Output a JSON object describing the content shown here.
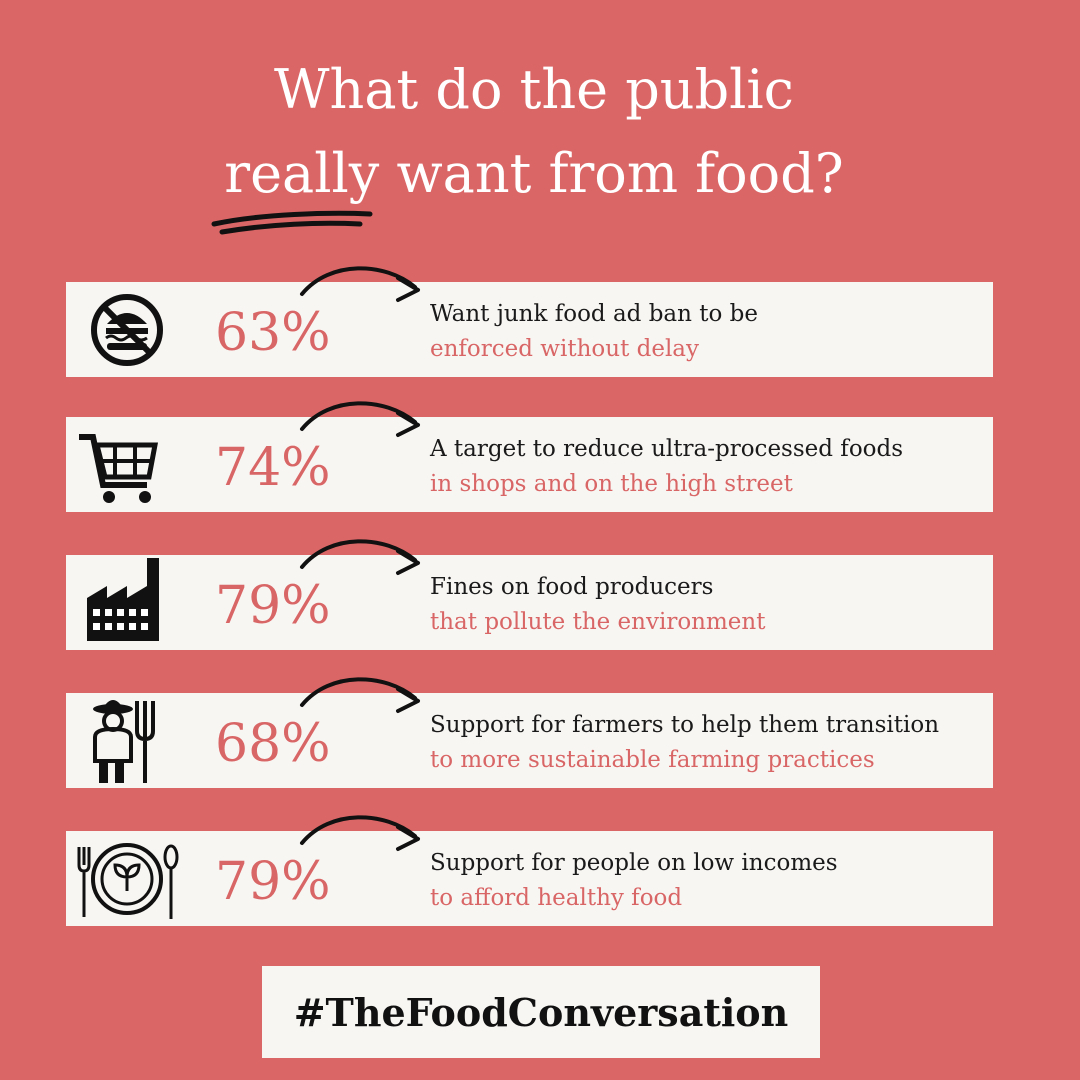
{
  "header": {
    "title_line1": "What do the public",
    "title_line2": "really want from food?"
  },
  "items": [
    {
      "percent": "63%",
      "line1": "Want junk food ad ban to be",
      "line2": "enforced without delay"
    },
    {
      "percent": "74%",
      "line1": "A target to reduce ultra-processed foods",
      "line2": "in shops and on the high street"
    },
    {
      "percent": "79%",
      "line1": "Fines on food producers",
      "line2": "that pollute the environment"
    },
    {
      "percent": "68%",
      "line1": "Support for farmers to help them transition",
      "line2": "to more sustainable farming practices"
    },
    {
      "percent": "79%",
      "line1": "Support for people on low incomes",
      "line2": "to afford healthy food"
    }
  ],
  "footer": {
    "hashtag": "#TheFoodConversation"
  }
}
